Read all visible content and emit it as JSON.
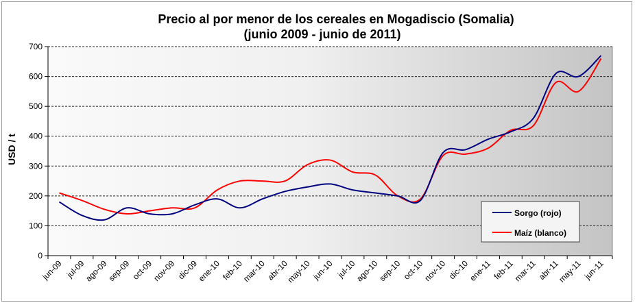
{
  "chart_data": {
    "type": "line",
    "title": "Precio al por menor de los cereales en Mogadiscio (Somalia)",
    "subtitle": "(junio 2009 - junio de 2011)",
    "xlabel": "",
    "ylabel": "USD / t",
    "ylim": [
      0,
      700
    ],
    "yticks": [
      0,
      100,
      200,
      300,
      400,
      500,
      600,
      700
    ],
    "grid": true,
    "legend_position": "bottom-right",
    "categories": [
      "jun-09",
      "jul-09",
      "ago-09",
      "sep-09",
      "oct-09",
      "nov-09",
      "dic-09",
      "ene-10",
      "feb-10",
      "mar-10",
      "abr-10",
      "may-10",
      "jun-10",
      "jul-10",
      "ago-10",
      "sep-10",
      "oct-10",
      "nov-10",
      "dic-10",
      "ene-11",
      "feb-11",
      "mar-11",
      "abr-11",
      "may-11",
      "jun-11"
    ],
    "series": [
      {
        "name": "Sorgo (rojo)",
        "color": "#000080",
        "values": [
          180,
          135,
          120,
          160,
          140,
          140,
          170,
          190,
          160,
          190,
          215,
          230,
          240,
          220,
          210,
          200,
          185,
          345,
          355,
          390,
          415,
          460,
          610,
          600,
          670
        ]
      },
      {
        "name": "Maíz (blanco)",
        "color": "#ff0000",
        "values": [
          210,
          185,
          155,
          140,
          150,
          160,
          160,
          220,
          250,
          250,
          250,
          305,
          320,
          280,
          270,
          200,
          190,
          335,
          340,
          360,
          420,
          435,
          580,
          550,
          660
        ]
      }
    ]
  }
}
